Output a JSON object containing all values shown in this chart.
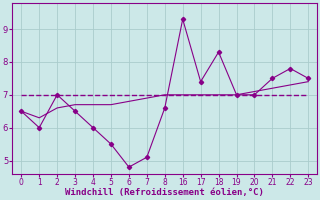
{
  "xlabel": "Windchill (Refroidissement éolien,°C)",
  "bg_color": "#cce8e8",
  "line_color": "#880088",
  "grid_color": "#aacccc",
  "y_main": [
    6.5,
    6.0,
    7.0,
    6.5,
    6.0,
    5.5,
    4.8,
    5.1,
    6.6,
    9.3,
    7.4,
    8.3,
    7.0,
    7.0,
    7.5,
    7.8,
    7.5
  ],
  "y_smooth": [
    6.5,
    6.3,
    6.6,
    6.7,
    6.7,
    6.7,
    6.8,
    6.9,
    7.0,
    7.0,
    7.0,
    7.0,
    7.0,
    7.1,
    7.2,
    7.3,
    7.4
  ],
  "y_flat": [
    7.0,
    7.0,
    7.0,
    7.0,
    7.0,
    7.0,
    7.0,
    7.0,
    7.0,
    7.0,
    7.0,
    7.0,
    7.0,
    7.0,
    7.0,
    7.0,
    7.0
  ],
  "ylim": [
    4.6,
    9.8
  ],
  "yticks": [
    5,
    6,
    7,
    8,
    9
  ],
  "xlim": [
    -0.5,
    16.5
  ],
  "xtick_positions": [
    0,
    1,
    2,
    3,
    4,
    5,
    6,
    7,
    8,
    9,
    10,
    11,
    12,
    13,
    14,
    15,
    16
  ],
  "xtick_labels": [
    "0",
    "1",
    "2",
    "3",
    "4",
    "5",
    "6",
    "7",
    "8",
    "16",
    "17",
    "18",
    "19",
    "20",
    "21",
    "22",
    "23"
  ]
}
